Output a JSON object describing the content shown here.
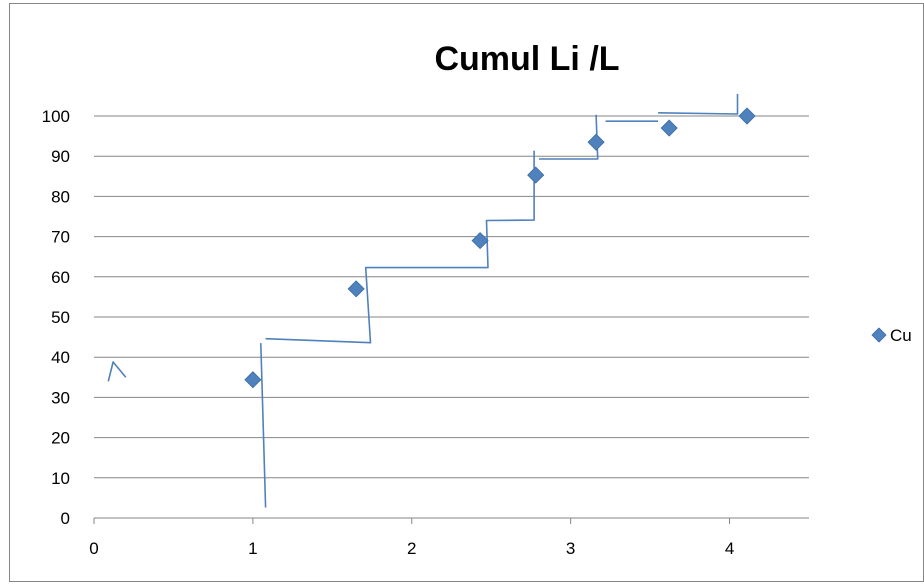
{
  "chart_data": {
    "type": "scatter",
    "title": "Cumul Li /L",
    "xlabel": "",
    "ylabel": "",
    "xlim": [
      0,
      4.5
    ],
    "ylim": [
      0,
      100
    ],
    "x_ticks": [
      0,
      1,
      2,
      3,
      4
    ],
    "y_ticks": [
      0,
      10,
      20,
      30,
      40,
      50,
      60,
      70,
      80,
      90,
      100
    ],
    "grid": "horizontal",
    "legend_position": "right",
    "marker": "diamond",
    "marker_color": "#4f81bd",
    "series": [
      {
        "name": "Cu",
        "x": [
          1.0,
          1.65,
          2.43,
          2.78,
          3.16,
          3.62,
          4.11
        ],
        "y": [
          34.4,
          57.0,
          69.0,
          85.3,
          93.5,
          97.0,
          100.0
        ]
      }
    ],
    "annotations": {
      "color": "#4f81bd",
      "strokes": [
        [
          [
            0.09,
            34.0
          ],
          [
            0.12,
            38.8
          ],
          [
            0.2,
            35.0
          ]
        ],
        [
          [
            1.08,
            2.6
          ],
          [
            1.05,
            43.5
          ]
        ],
        [
          [
            1.08,
            44.6
          ],
          [
            1.74,
            43.6
          ],
          [
            1.71,
            62.3
          ],
          [
            2.48,
            62.3
          ],
          [
            2.47,
            74.0
          ],
          [
            2.77,
            74.1
          ],
          [
            2.77,
            91.4
          ]
        ],
        [
          [
            2.8,
            89.3
          ],
          [
            3.17,
            89.3
          ],
          [
            3.16,
            100.3
          ]
        ],
        [
          [
            3.22,
            98.7
          ],
          [
            3.55,
            98.7
          ]
        ],
        [
          [
            3.55,
            100.8
          ],
          [
            4.05,
            100.5
          ],
          [
            4.05,
            105.5
          ]
        ]
      ]
    }
  }
}
